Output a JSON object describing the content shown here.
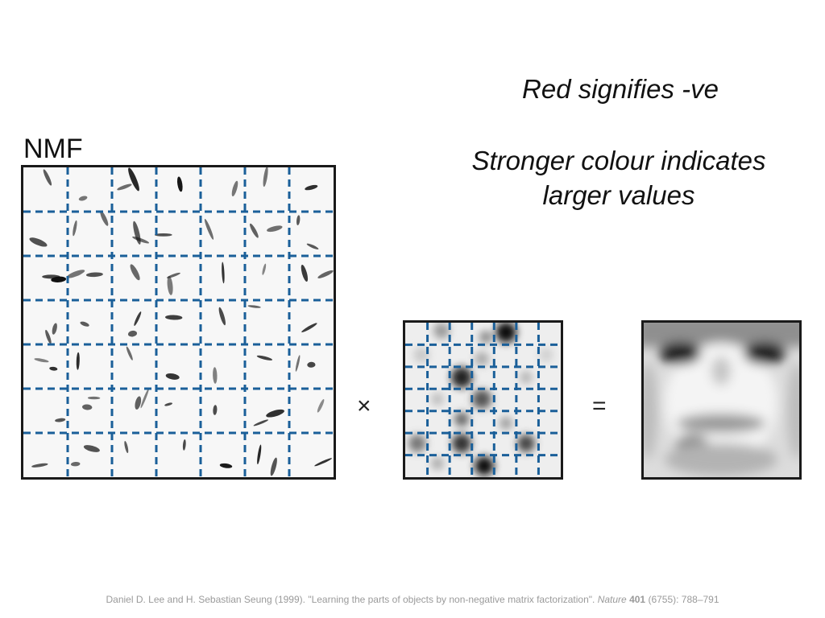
{
  "notes": {
    "negative": "Red signifies -ve",
    "strength_line1": "Stronger colour indicates",
    "strength_line2": "larger values"
  },
  "labels": {
    "nmf": "NMF",
    "times": "×",
    "equals": "="
  },
  "citation": {
    "authors": "Daniel D. Lee and H. Sebastian Seung (1999). \"Learning the parts of objects by non-negative matrix factorization\". ",
    "journal": "Nature",
    "volume": "401",
    "issue_pages": " (6755): 788–791"
  },
  "grids": {
    "basis": {
      "rows": 7,
      "cols": 7
    },
    "weights": {
      "rows": 7,
      "cols": 7
    }
  },
  "colors": {
    "grid_line": "#1a5f99",
    "frame": "#1a1a1a"
  }
}
